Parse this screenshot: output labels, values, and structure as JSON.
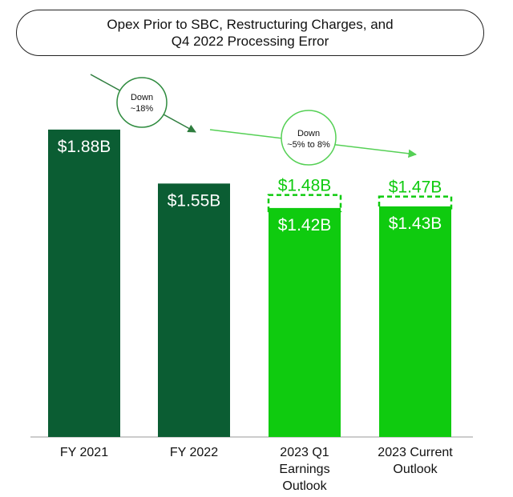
{
  "chart_data": {
    "type": "bar",
    "title_line1": "Opex Prior to SBC, Restructuring Charges, and",
    "title_line2": "Q4 2022 Processing Error",
    "categories": [
      "FY 2021",
      "FY 2022",
      "2023 Q1 Earnings Outlook",
      "2023 Current Outlook"
    ],
    "category_lines": [
      [
        "FY 2021"
      ],
      [
        "FY 2022"
      ],
      [
        "2023 Q1",
        "Earnings",
        "Outlook"
      ],
      [
        "2023 Current",
        "Outlook"
      ]
    ],
    "values": [
      1.88,
      1.55,
      1.42,
      1.43
    ],
    "value_labels": [
      "$1.88B",
      "$1.55B",
      "$1.42B",
      "$1.43B"
    ],
    "range_high_values": [
      null,
      null,
      1.48,
      1.47
    ],
    "range_high_labels": [
      "",
      "",
      "$1.48B",
      "$1.47B"
    ],
    "bar_colors": [
      "#0b5d33",
      "#0b5d33",
      "#0fcb0f",
      "#0fcb0f"
    ],
    "ylim": [
      0,
      2.0
    ],
    "xlabel": "",
    "ylabel": "",
    "annotations": [
      {
        "text_lines": [
          "Down",
          "~18%"
        ],
        "from_category": 0,
        "to_category": 1
      },
      {
        "text_lines": [
          "Down",
          "~5% to 8%"
        ],
        "from_category": 1,
        "to_category": 3
      }
    ],
    "colors": {
      "dark_green": "#0b5d33",
      "bright_green": "#0fcb0f",
      "annotation_green": "#2e8b3e",
      "light_arrow": "#55d055",
      "dashed": "#0fcb0f"
    }
  }
}
